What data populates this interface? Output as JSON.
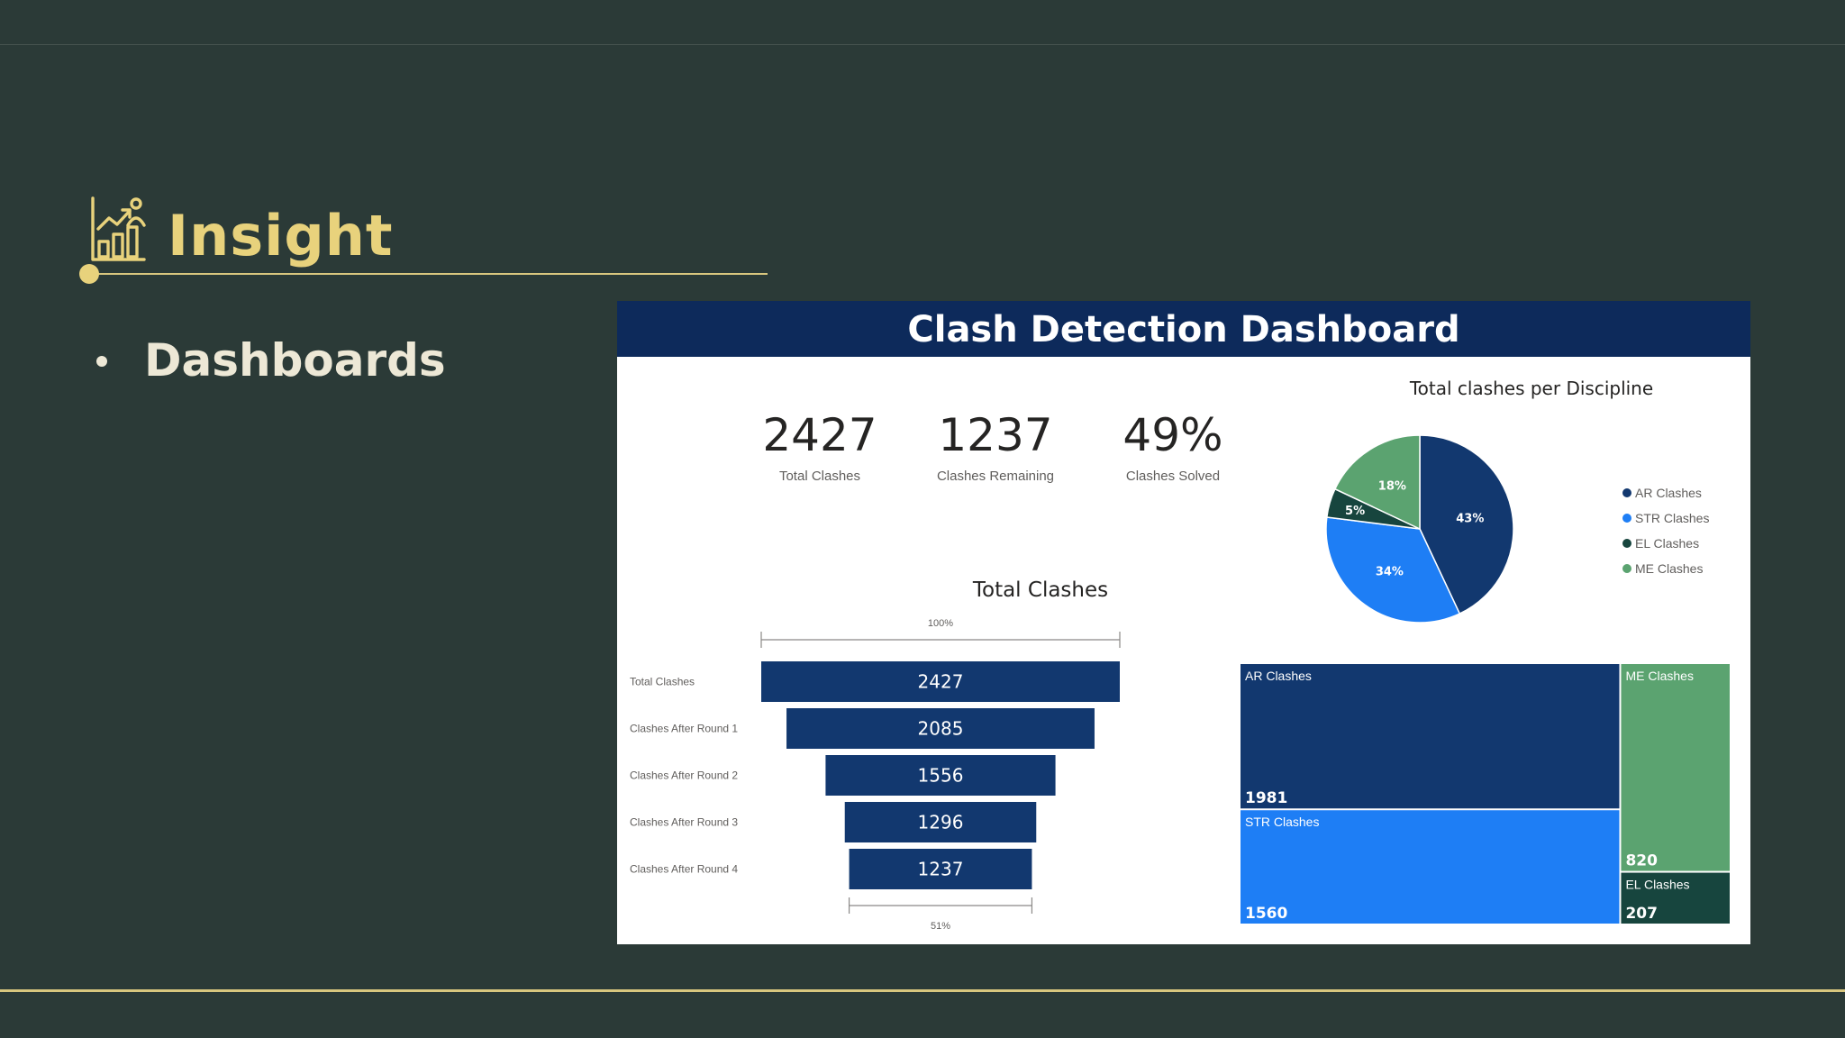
{
  "slide": {
    "title": "Insight",
    "bullet": "Dashboards",
    "title_icon": "chart-analytics-icon",
    "accent_color": "#e8d27c",
    "background_color": "#2b3a37"
  },
  "dashboard": {
    "title": "Clash Detection Dashboard",
    "kpis": [
      {
        "value": "2427",
        "label": "Total Clashes"
      },
      {
        "value": "1237",
        "label": "Clashes Remaining"
      },
      {
        "value": "49%",
        "label": "Clashes Solved"
      }
    ]
  },
  "chart_data": [
    {
      "type": "bar",
      "subtype": "funnel",
      "title": "Total Clashes",
      "categories": [
        "Total Clashes",
        "Clashes After Round 1",
        "Clashes After Round 2",
        "Clashes After Round 3",
        "Clashes After Round 4"
      ],
      "values": [
        2427,
        2085,
        1556,
        1296,
        1237
      ],
      "top_percent_label": "100%",
      "bottom_percent_label": "51%",
      "color": "#12386f"
    },
    {
      "type": "pie",
      "title": "Total clashes per Discipline",
      "legend_position": "right",
      "slices": [
        {
          "name": "AR Clashes",
          "percent": 43,
          "label": "43%",
          "color": "#12386f"
        },
        {
          "name": "STR Clashes",
          "percent": 34,
          "label": "34%",
          "color": "#1e7ef5"
        },
        {
          "name": "EL Clashes",
          "percent": 5,
          "label": "5%",
          "color": "#17453e"
        },
        {
          "name": "ME Clashes",
          "percent": 18,
          "label": "18%",
          "color": "#5ba370"
        }
      ]
    },
    {
      "type": "treemap",
      "title": "",
      "items": [
        {
          "name": "AR Clashes",
          "value": 1981,
          "label": "1981",
          "color": "#12386f"
        },
        {
          "name": "STR Clashes",
          "value": 1560,
          "label": "1560",
          "color": "#1e7ef5"
        },
        {
          "name": "ME Clashes",
          "value": 820,
          "label": "820",
          "color": "#5ba370"
        },
        {
          "name": "EL Clashes",
          "value": 207,
          "label": "207",
          "color": "#17453e"
        }
      ]
    }
  ]
}
